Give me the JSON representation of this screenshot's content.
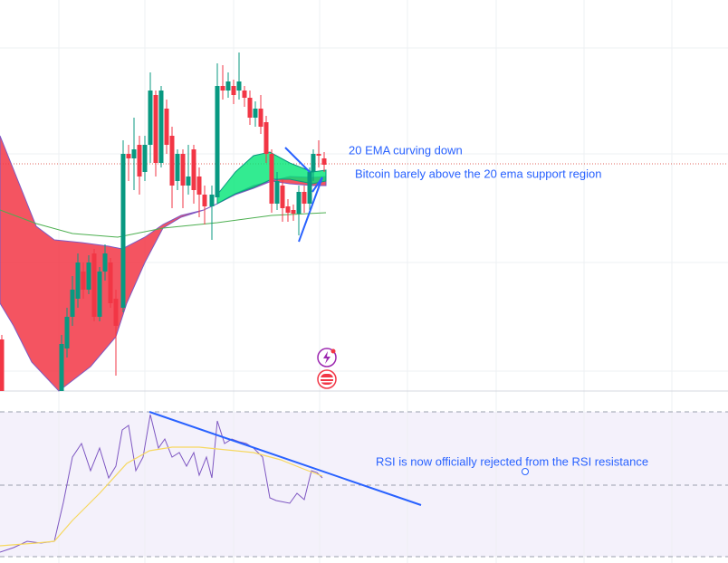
{
  "annotations": {
    "ema_note": "20 EMA curving down",
    "support_note": "Bitcoin barely above the 20 ema support region",
    "rsi_note": "RSI is now officially rejected from the RSI resistance"
  }
}
